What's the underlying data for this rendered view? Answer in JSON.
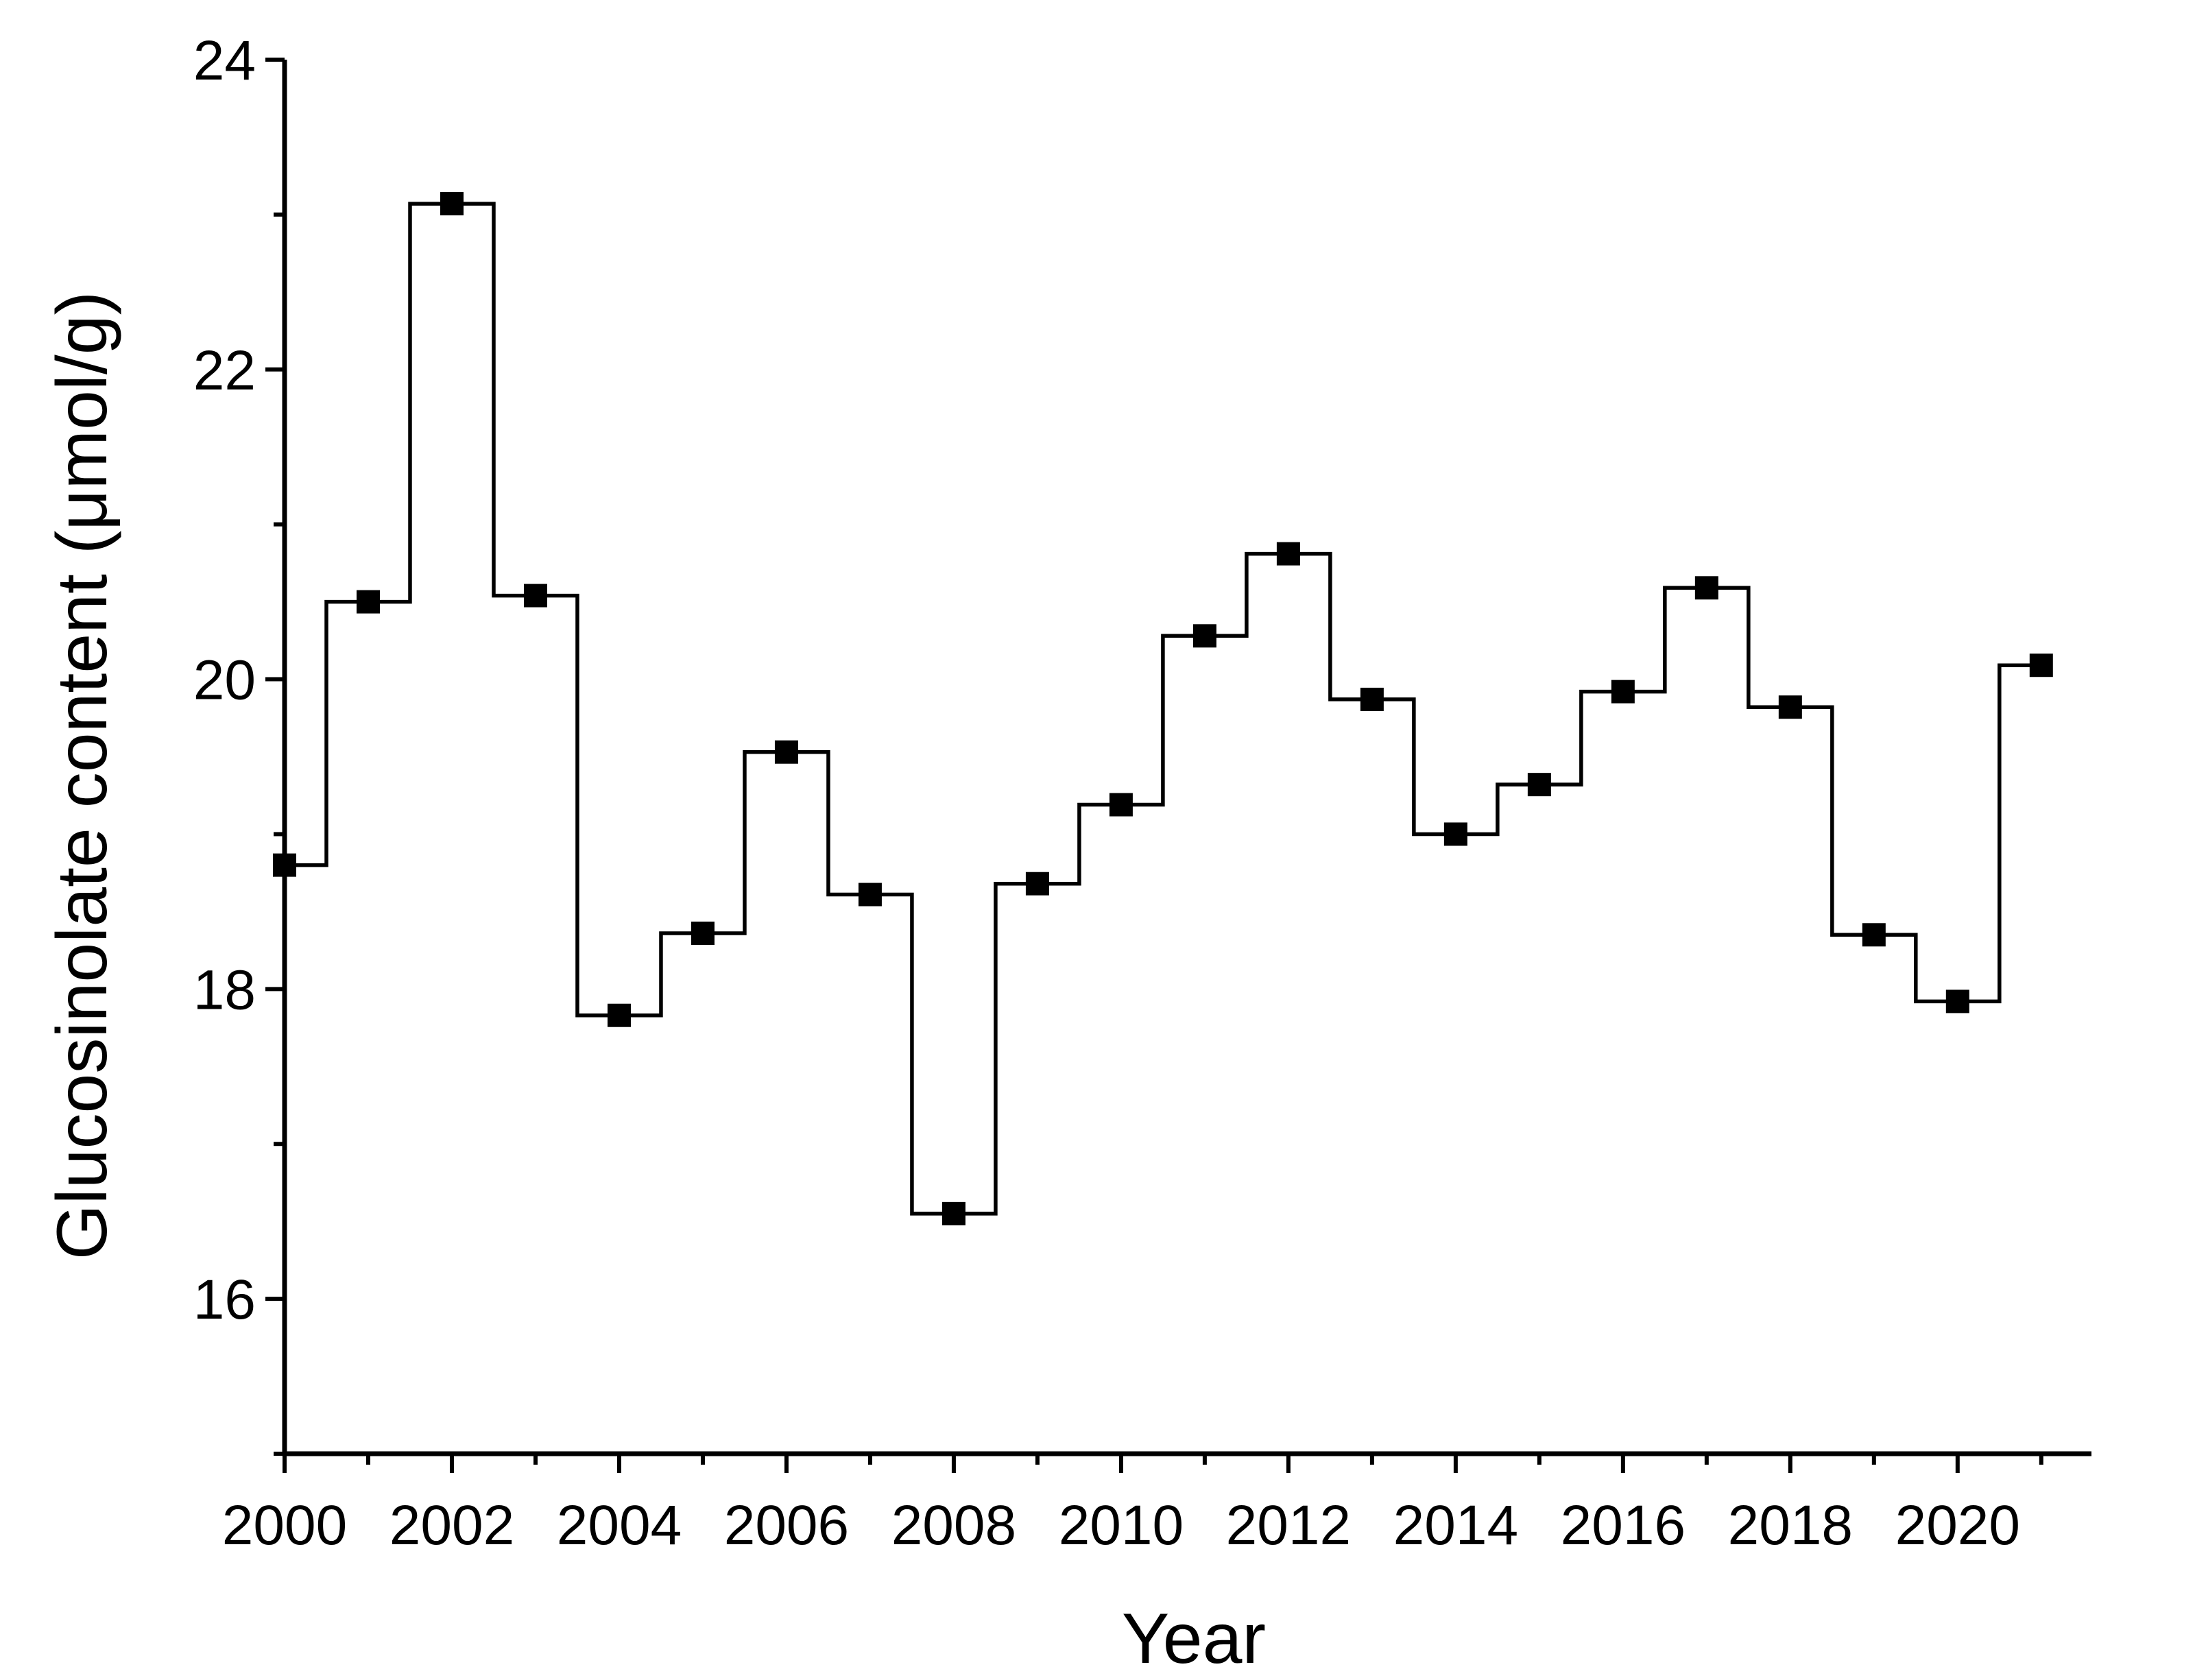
{
  "chart_data": {
    "type": "line",
    "line_style": "step-center",
    "marker": "square",
    "color": "#000000",
    "xlabel": "Year",
    "ylabel": "Glucosinolate content (μmol/g)",
    "xlim": [
      2000,
      2021.6
    ],
    "ylim": [
      15,
      24
    ],
    "xticks": [
      2000,
      2002,
      2004,
      2006,
      2008,
      2010,
      2012,
      2014,
      2016,
      2018,
      2020
    ],
    "yticks": [
      16,
      18,
      20,
      22,
      24
    ],
    "grid": false,
    "legend": "none",
    "series": [
      {
        "x": [
          2000,
          2001,
          2002,
          2003,
          2004,
          2005,
          2006,
          2007,
          2008,
          2009,
          2010,
          2011,
          2012,
          2013,
          2014,
          2015,
          2016,
          2017,
          2018,
          2019,
          2020,
          2021
        ],
        "values": [
          18.8,
          20.5,
          23.07,
          20.54,
          17.83,
          18.36,
          19.53,
          18.61,
          16.55,
          18.68,
          19.19,
          20.28,
          20.81,
          19.87,
          19.0,
          19.32,
          19.92,
          20.59,
          19.82,
          18.35,
          17.92,
          20.09
        ]
      }
    ]
  }
}
